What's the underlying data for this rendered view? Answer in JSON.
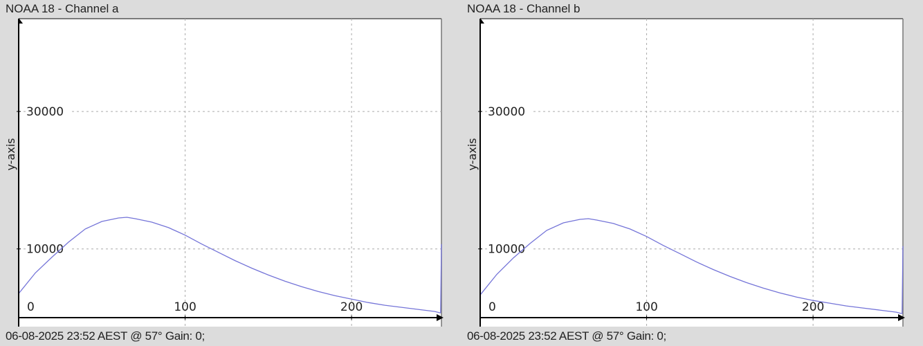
{
  "chart_data": [
    {
      "type": "line",
      "title": "NOAA 18 - Channel a",
      "ylabel": "y-axis",
      "xlabel": "",
      "xlim": [
        0,
        254
      ],
      "ylim": [
        0,
        43500
      ],
      "x_ticks": [
        0,
        100,
        200
      ],
      "y_ticks": [
        10000,
        30000
      ],
      "grid": true,
      "line_color": "#7474d8",
      "footer": "06-08-2025 23:52 AEST @ 57° Gain: 0;",
      "series": [
        {
          "x": [
            0,
            10,
            20,
            30,
            40,
            50,
            60,
            65,
            70,
            80,
            90,
            100,
            110,
            120,
            130,
            140,
            150,
            160,
            170,
            180,
            190,
            200,
            210,
            220,
            230,
            240,
            250,
            253,
            253.5,
            254
          ],
          "y": [
            3500,
            6500,
            8800,
            11000,
            12900,
            14000,
            14500,
            14600,
            14400,
            13900,
            13100,
            12000,
            10700,
            9500,
            8300,
            7200,
            6200,
            5300,
            4500,
            3800,
            3200,
            2700,
            2200,
            1800,
            1500,
            1200,
            900,
            700,
            700,
            10700
          ]
        }
      ]
    },
    {
      "type": "line",
      "title": "NOAA 18 - Channel b",
      "ylabel": "y-axis",
      "xlabel": "",
      "xlim": [
        0,
        254
      ],
      "ylim": [
        0,
        43500
      ],
      "x_ticks": [
        0,
        100,
        200
      ],
      "y_ticks": [
        10000,
        30000
      ],
      "grid": true,
      "line_color": "#7474d8",
      "footer": "06-08-2025 23:52 AEST @ 57° Gain: 0;",
      "series": [
        {
          "x": [
            0,
            10,
            20,
            30,
            40,
            50,
            60,
            65,
            70,
            80,
            90,
            100,
            110,
            120,
            130,
            140,
            150,
            160,
            170,
            180,
            190,
            200,
            210,
            220,
            230,
            240,
            250,
            253,
            253.5,
            254
          ],
          "y": [
            3300,
            6300,
            8700,
            10800,
            12700,
            13800,
            14300,
            14400,
            14200,
            13700,
            12900,
            11800,
            10500,
            9300,
            8100,
            7000,
            6000,
            5100,
            4300,
            3600,
            3000,
            2500,
            2100,
            1700,
            1400,
            1100,
            800,
            600,
            600,
            10400
          ]
        }
      ]
    }
  ]
}
